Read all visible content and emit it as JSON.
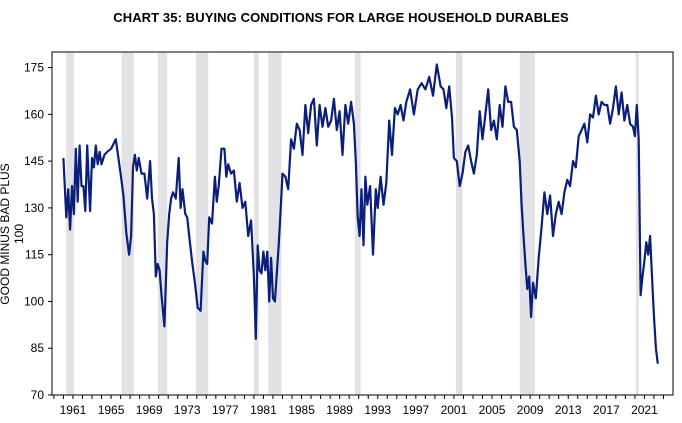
{
  "chart_data": {
    "type": "line",
    "title": "CHART 35: BUYING CONDITIONS FOR LARGE HOUSEHOLD DURABLES",
    "ylabel": "GOOD MINUS BAD PLUS 100",
    "xlabel": "",
    "xlim": [
      1958.8,
      2024.0
    ],
    "ylim": [
      70,
      180
    ],
    "yticks": [
      70,
      85,
      100,
      115,
      130,
      145,
      160,
      175
    ],
    "xticks": [
      1961,
      1965,
      1969,
      1973,
      1977,
      1981,
      1985,
      1989,
      1993,
      1997,
      2001,
      2005,
      2009,
      2013,
      2017,
      2021
    ],
    "recessions": [
      [
        1960.3,
        1961.1
      ],
      [
        1966.1,
        1967.4
      ],
      [
        1969.9,
        1970.9
      ],
      [
        1973.9,
        1975.2
      ],
      [
        1980.0,
        1980.5
      ],
      [
        1981.5,
        1982.9
      ],
      [
        1990.6,
        1991.2
      ],
      [
        2001.2,
        2001.9
      ],
      [
        2007.9,
        2009.5
      ],
      [
        2020.1,
        2020.4
      ]
    ],
    "recession_color": "#e2e2e6",
    "line_color": "#0b1f7a",
    "series": [
      {
        "name": "",
        "x": [
          1960.0,
          1960.3,
          1960.5,
          1960.7,
          1960.9,
          1961.1,
          1961.3,
          1961.5,
          1961.7,
          1961.9,
          1962.1,
          1962.3,
          1962.5,
          1962.8,
          1963.0,
          1963.2,
          1963.4,
          1963.6,
          1963.8,
          1964.0,
          1964.3,
          1964.6,
          1965.0,
          1965.5,
          1966.0,
          1966.3,
          1966.6,
          1966.9,
          1967.1,
          1967.3,
          1967.5,
          1967.7,
          1967.9,
          1968.2,
          1968.5,
          1968.8,
          1969.1,
          1969.3,
          1969.5,
          1969.7,
          1969.9,
          1970.1,
          1970.3,
          1970.6,
          1970.9,
          1971.1,
          1971.3,
          1971.5,
          1971.8,
          1972.1,
          1972.3,
          1972.5,
          1972.8,
          1973.0,
          1973.2,
          1973.5,
          1973.8,
          1974.1,
          1974.4,
          1974.7,
          1974.9,
          1975.1,
          1975.3,
          1975.6,
          1975.9,
          1976.1,
          1976.3,
          1976.6,
          1976.9,
          1977.1,
          1977.3,
          1977.6,
          1977.9,
          1978.2,
          1978.5,
          1978.8,
          1979.1,
          1979.4,
          1979.7,
          1980.0,
          1980.2,
          1980.4,
          1980.6,
          1980.8,
          1981.0,
          1981.2,
          1981.4,
          1981.6,
          1981.8,
          1982.0,
          1982.2,
          1982.4,
          1982.6,
          1982.8,
          1983.0,
          1983.3,
          1983.6,
          1983.9,
          1984.2,
          1984.5,
          1984.8,
          1985.1,
          1985.4,
          1985.7,
          1986.0,
          1986.3,
          1986.6,
          1986.9,
          1987.2,
          1987.5,
          1987.8,
          1988.1,
          1988.4,
          1988.7,
          1989.0,
          1989.3,
          1989.6,
          1989.9,
          1990.2,
          1990.5,
          1990.7,
          1990.9,
          1991.1,
          1991.3,
          1991.5,
          1991.7,
          1991.9,
          1992.2,
          1992.5,
          1992.8,
          1993.0,
          1993.3,
          1993.6,
          1993.9,
          1994.2,
          1994.5,
          1994.8,
          1995.1,
          1995.4,
          1995.7,
          1996.0,
          1996.4,
          1996.8,
          1997.2,
          1997.6,
          1998.0,
          1998.4,
          1998.8,
          1999.2,
          1999.6,
          1999.9,
          2000.2,
          2000.5,
          2000.8,
          2001.0,
          2001.3,
          2001.6,
          2001.9,
          2002.2,
          2002.5,
          2002.8,
          2003.1,
          2003.4,
          2003.7,
          2004.0,
          2004.3,
          2004.6,
          2004.9,
          2005.2,
          2005.5,
          2005.8,
          2006.1,
          2006.4,
          2006.7,
          2007.0,
          2007.3,
          2007.6,
          2007.9,
          2008.1,
          2008.3,
          2008.5,
          2008.7,
          2008.9,
          2009.1,
          2009.3,
          2009.6,
          2009.9,
          2010.2,
          2010.5,
          2010.8,
          2011.1,
          2011.4,
          2011.7,
          2012.0,
          2012.3,
          2012.6,
          2012.9,
          2013.2,
          2013.5,
          2013.8,
          2014.1,
          2014.4,
          2014.7,
          2015.0,
          2015.3,
          2015.6,
          2015.9,
          2016.2,
          2016.5,
          2016.8,
          2017.1,
          2017.4,
          2017.7,
          2018.0,
          2018.3,
          2018.6,
          2018.9,
          2019.2,
          2019.5,
          2019.8,
          2020.0,
          2020.2,
          2020.4,
          2020.6,
          2020.8,
          2021.0,
          2021.2,
          2021.4,
          2021.6,
          2021.8,
          2022.0,
          2022.2,
          2022.4
        ],
        "values": [
          146,
          127,
          136,
          123,
          137,
          128,
          149,
          132,
          150,
          137,
          137,
          129,
          150,
          129,
          146,
          143,
          150,
          144,
          148,
          144,
          147,
          148,
          149,
          152,
          141,
          134,
          122,
          115,
          121,
          143,
          147,
          142,
          146,
          141,
          141,
          133,
          145,
          133,
          128,
          108,
          112,
          110,
          102,
          92,
          119,
          128,
          133,
          135,
          133,
          146,
          130,
          136,
          128,
          127,
          121,
          113,
          106,
          98,
          97,
          116,
          113,
          112,
          127,
          125,
          140,
          132,
          137,
          149,
          149,
          140,
          144,
          141,
          142,
          132,
          138,
          130,
          132,
          121,
          126,
          108,
          88,
          118,
          110,
          109,
          116,
          110,
          116,
          100,
          114,
          101,
          100,
          109,
          118,
          129,
          141,
          140,
          136,
          152,
          149,
          157,
          155,
          147,
          163,
          154,
          163,
          165,
          150,
          163,
          156,
          162,
          156,
          158,
          165,
          155,
          161,
          147,
          163,
          157,
          164,
          157,
          145,
          127,
          121,
          136,
          118,
          140,
          131,
          137,
          115,
          136,
          130,
          140,
          131,
          138,
          158,
          147,
          162,
          160,
          163,
          158,
          164,
          168,
          160,
          168,
          170,
          168,
          172,
          166,
          176,
          169,
          168,
          162,
          169,
          159,
          146,
          145,
          137,
          141,
          148,
          150,
          145,
          141,
          147,
          161,
          152,
          160,
          168,
          155,
          158,
          152,
          163,
          156,
          169,
          164,
          164,
          156,
          155,
          145,
          131,
          121,
          112,
          104,
          108,
          95,
          106,
          101,
          114,
          124,
          135,
          128,
          134,
          121,
          128,
          132,
          128,
          135,
          139,
          137,
          145,
          143,
          153,
          155,
          157,
          151,
          160,
          159,
          166,
          160,
          164,
          163,
          163,
          157,
          162,
          169,
          160,
          167,
          158,
          163,
          157,
          156,
          153,
          163,
          152,
          102,
          108,
          113,
          119,
          115,
          121,
          108,
          95,
          85,
          80
        ]
      }
    ]
  }
}
